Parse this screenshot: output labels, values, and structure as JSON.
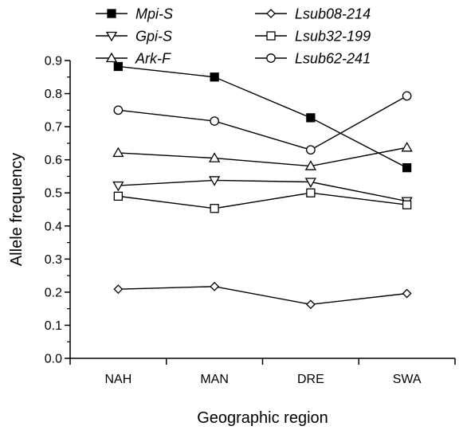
{
  "chart_data": {
    "type": "line",
    "xlabel": "Geographic region",
    "ylabel": "Allele frequency",
    "ylim": [
      0.0,
      0.9
    ],
    "yticks": [
      "0.0",
      "0.1",
      "0.2",
      "0.3",
      "0.4",
      "0.5",
      "0.6",
      "0.7",
      "0.8",
      "0.9"
    ],
    "categories": [
      "NAH",
      "MAN",
      "DRE",
      "SWA"
    ],
    "grid": false,
    "legend_position": "top",
    "line_color": "#000000",
    "series": [
      {
        "name": "Mpi-S",
        "marker": "square-filled",
        "values": [
          0.882,
          0.85,
          0.727,
          0.576
        ]
      },
      {
        "name": "Gpi-S",
        "marker": "triangle-down-open",
        "values": [
          0.522,
          0.538,
          0.533,
          0.475
        ]
      },
      {
        "name": "Ark-F",
        "marker": "triangle-up-open",
        "values": [
          0.621,
          0.605,
          0.581,
          0.637
        ]
      },
      {
        "name": "Lsub08-214",
        "marker": "diamond-open",
        "values": [
          0.209,
          0.217,
          0.163,
          0.196
        ]
      },
      {
        "name": "Lsub32-199",
        "marker": "square-open",
        "values": [
          0.49,
          0.453,
          0.5,
          0.464
        ]
      },
      {
        "name": "Lsub62-241",
        "marker": "circle-open",
        "values": [
          0.75,
          0.717,
          0.63,
          0.793
        ]
      }
    ]
  }
}
